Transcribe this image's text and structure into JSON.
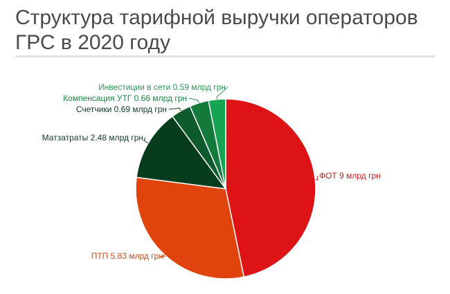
{
  "chart_data": {
    "type": "pie",
    "title": "Структура тарифной выручки операторов ГРС в 2020 году",
    "unit": "млрд грн",
    "slices": [
      {
        "label": "ФОТ 9 млрд грн",
        "value": 9,
        "color": "#dd1315"
      },
      {
        "label": "ПТП 5.83 млрд грн",
        "value": 5.83,
        "color": "#e0430c"
      },
      {
        "label": "Матзатраты 2.48 млрд грн",
        "value": 2.48,
        "color": "#073d1d"
      },
      {
        "label": "Счетчики 0.69 млрд грн",
        "value": 0.69,
        "color": "#0d5a2c"
      },
      {
        "label": "Компенсация УТГ 0.66 млрд грн",
        "value": 0.66,
        "color": "#137a3b"
      },
      {
        "label": "Инвестиции в сети 0.59 млрд грн",
        "value": 0.59,
        "color": "#16a352"
      }
    ],
    "label_colors": [
      "#cc1a1a",
      "#cc4a1a",
      "#0b3d1f",
      "#0b3d1f",
      "#178a44",
      "#2a9a55"
    ]
  }
}
